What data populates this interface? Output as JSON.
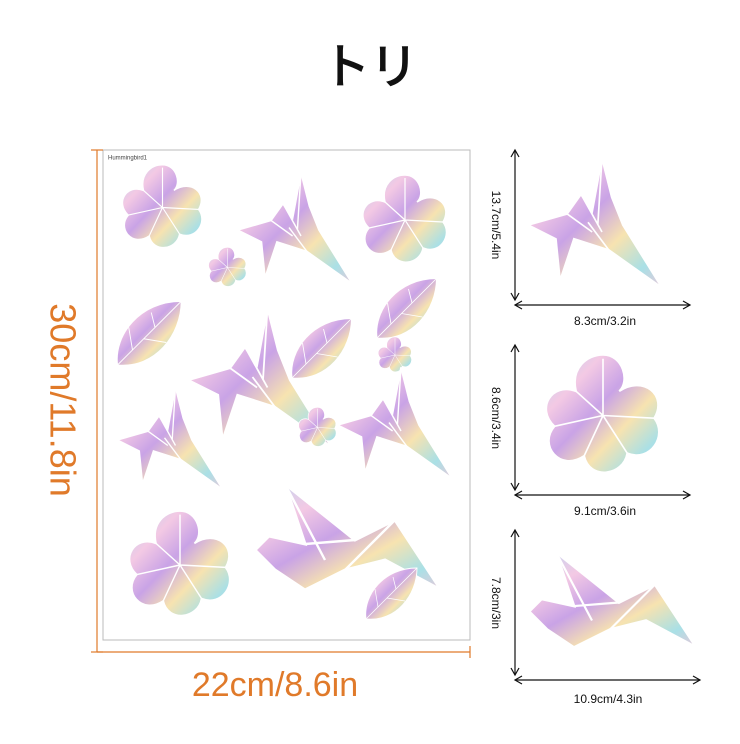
{
  "header": {
    "title": "トリ"
  },
  "sheet": {
    "label": "Hummingbird1",
    "height": "30cm/11.8in",
    "width": "22cm/8.6in"
  },
  "items": [
    {
      "height": "13.7cm/5.4in",
      "width": "8.3cm/3.2in"
    },
    {
      "height": "8.6cm/3.4in",
      "width": "9.1cm/3.6in"
    },
    {
      "height": "7.8cm/3in",
      "width": "10.9cm/4.3in"
    }
  ]
}
